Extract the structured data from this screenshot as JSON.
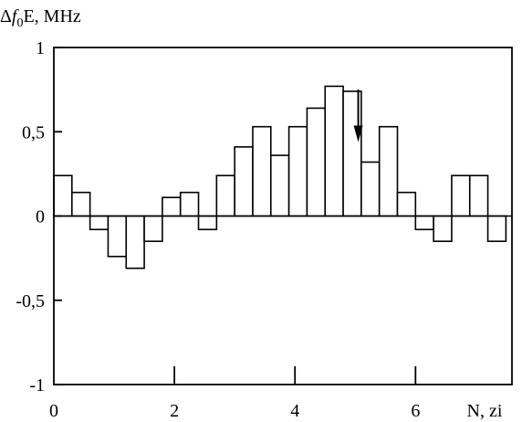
{
  "chart_data": {
    "type": "bar",
    "ylabel": "Δf0E, MHz",
    "ylabel_parts": {
      "prefix": "Δ",
      "italic": "f",
      "subscript": "0",
      "suffix": "E, MHz"
    },
    "xlabel": "N, zi",
    "xlim": [
      0,
      7.6
    ],
    "ylim": [
      -1,
      1
    ],
    "x_ticks": [
      0,
      2,
      4,
      6
    ],
    "x_tick_labels": [
      "0",
      "2",
      "4",
      "6"
    ],
    "y_ticks": [
      1,
      0.5,
      0,
      -0.5,
      -1
    ],
    "y_tick_labels": [
      "1",
      "0,5",
      "0",
      "-0,5",
      "-1"
    ],
    "bar_width": 0.3,
    "bar_starts": [
      0.0,
      0.3,
      0.6,
      0.9,
      1.2,
      1.5,
      1.8,
      2.1,
      2.4,
      2.7,
      3.0,
      3.3,
      3.6,
      3.9,
      4.2,
      4.5,
      4.8,
      5.1,
      5.4,
      5.7,
      6.0,
      6.3,
      6.6,
      6.9,
      7.2
    ],
    "values": [
      0.24,
      0.14,
      -0.08,
      -0.24,
      -0.31,
      -0.15,
      0.11,
      0.14,
      -0.08,
      0.24,
      0.41,
      0.53,
      0.36,
      0.53,
      0.64,
      0.77,
      0.74,
      0.32,
      0.53,
      0.14,
      -0.08,
      -0.15,
      0.24,
      0.24,
      -0.15
    ],
    "extra_bars": [
      {
        "x0": 7.6,
        "x1": 7.6,
        "value": 0
      }
    ],
    "annotations": [
      {
        "type": "arrow-down",
        "x": 5.05,
        "y_from": 0.75,
        "y_to": 0.45
      }
    ],
    "grid": false
  }
}
